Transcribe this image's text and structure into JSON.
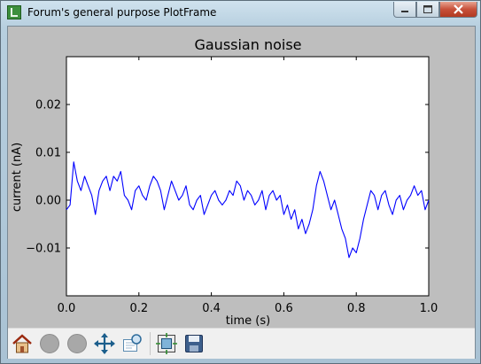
{
  "window": {
    "title": "Forum's general purpose PlotFrame",
    "controls": [
      "minimize-icon",
      "maximize-icon",
      "close-icon"
    ]
  },
  "chart_data": {
    "type": "line",
    "title": "Gaussian noise",
    "xlabel": "time (s)",
    "ylabel": "current (nA)",
    "xlim": [
      0.0,
      1.0
    ],
    "ylim": [
      -0.02,
      0.03
    ],
    "x_ticks": [
      "0.0",
      "0.2",
      "0.4",
      "0.6",
      "0.8",
      "1.0"
    ],
    "y_ticks": [
      "−0.01",
      "0.00",
      "0.01",
      "0.02"
    ],
    "y_tick_values": [
      -0.01,
      0.0,
      0.01,
      0.02
    ],
    "x_tick_values": [
      0.0,
      0.2,
      0.4,
      0.6,
      0.8,
      1.0
    ],
    "grid": false,
    "series": [
      {
        "color": "#0000ff",
        "x": [
          0.0,
          0.01,
          0.02,
          0.03,
          0.04,
          0.05,
          0.06,
          0.07,
          0.08,
          0.09,
          0.1,
          0.11,
          0.12,
          0.13,
          0.14,
          0.15,
          0.16,
          0.17,
          0.18,
          0.19,
          0.2,
          0.21,
          0.22,
          0.23,
          0.24,
          0.25,
          0.26,
          0.27,
          0.28,
          0.29,
          0.3,
          0.31,
          0.32,
          0.33,
          0.34,
          0.35,
          0.36,
          0.37,
          0.38,
          0.39,
          0.4,
          0.41,
          0.42,
          0.43,
          0.44,
          0.45,
          0.46,
          0.47,
          0.48,
          0.49,
          0.5,
          0.51,
          0.52,
          0.53,
          0.54,
          0.55,
          0.56,
          0.57,
          0.58,
          0.59,
          0.6,
          0.61,
          0.62,
          0.63,
          0.64,
          0.65,
          0.66,
          0.67,
          0.68,
          0.69,
          0.7,
          0.71,
          0.72,
          0.73,
          0.74,
          0.75,
          0.76,
          0.77,
          0.78,
          0.79,
          0.8,
          0.81,
          0.82,
          0.83,
          0.84,
          0.85,
          0.86,
          0.87,
          0.88,
          0.89,
          0.9,
          0.91,
          0.92,
          0.93,
          0.94,
          0.95,
          0.96,
          0.97,
          0.98,
          0.99,
          1.0
        ],
        "y": [
          -0.002,
          -0.001,
          0.008,
          0.004,
          0.002,
          0.005,
          0.003,
          0.001,
          -0.003,
          0.002,
          0.004,
          0.005,
          0.002,
          0.005,
          0.004,
          0.006,
          0.001,
          0.0,
          -0.002,
          0.002,
          0.003,
          0.001,
          0.0,
          0.003,
          0.005,
          0.004,
          0.002,
          -0.002,
          0.001,
          0.004,
          0.002,
          0.0,
          0.001,
          0.003,
          -0.001,
          -0.002,
          0.0,
          0.001,
          -0.003,
          -0.001,
          0.001,
          0.002,
          0.0,
          -0.001,
          0.0,
          0.002,
          0.001,
          0.004,
          0.003,
          0.0,
          0.002,
          0.001,
          -0.001,
          0.0,
          0.002,
          -0.002,
          0.001,
          0.002,
          0.0,
          0.001,
          -0.003,
          -0.001,
          -0.004,
          -0.002,
          -0.006,
          -0.004,
          -0.007,
          -0.005,
          -0.002,
          0.003,
          0.006,
          0.004,
          0.001,
          -0.002,
          0.0,
          -0.003,
          -0.006,
          -0.008,
          -0.012,
          -0.01,
          -0.011,
          -0.008,
          -0.004,
          -0.001,
          0.002,
          0.001,
          -0.002,
          0.001,
          0.002,
          -0.001,
          -0.003,
          0.0,
          0.001,
          -0.002,
          0.0,
          0.001,
          0.003,
          0.001,
          0.002,
          -0.002,
          0.0
        ]
      }
    ]
  },
  "toolbar": {
    "buttons": [
      "home-icon",
      "back-icon",
      "forward-icon",
      "pan-icon",
      "zoom-icon",
      "subplots-icon",
      "save-icon"
    ]
  }
}
